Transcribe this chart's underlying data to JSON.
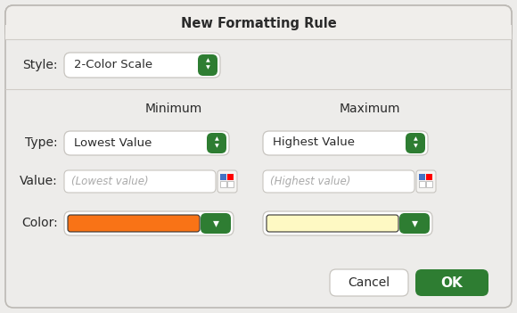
{
  "title": "New Formatting Rule",
  "bg_color": "#edecea",
  "dialog_bg": "#edecea",
  "border_color": "#bcb9b4",
  "title_bar_bg": "#f0eeeb",
  "title_text": "New Formatting Rule",
  "style_label": "Style:",
  "style_value": "2-Color Scale",
  "min_label": "Minimum",
  "max_label": "Maximum",
  "type_label": "Type:",
  "value_label": "Value:",
  "color_label": "Color:",
  "min_type_value": "Lowest Value",
  "max_type_value": "Highest Value",
  "min_value_placeholder": "(Lowest value)",
  "max_value_placeholder": "(Highest value)",
  "orange_color": "#f97316",
  "yellow_color": "#fef9c3",
  "cancel_btn_text": "Cancel",
  "ok_btn_text": "OK",
  "green_btn_color": "#2e7d32",
  "white_btn_color": "#ffffff",
  "input_bg": "#ffffff",
  "input_border": "#c8c5c0",
  "color_box_border": "#333333",
  "placeholder_color": "#aaaaaa",
  "label_color": "#2a2a2a",
  "separator_color": "#d0ccc7"
}
